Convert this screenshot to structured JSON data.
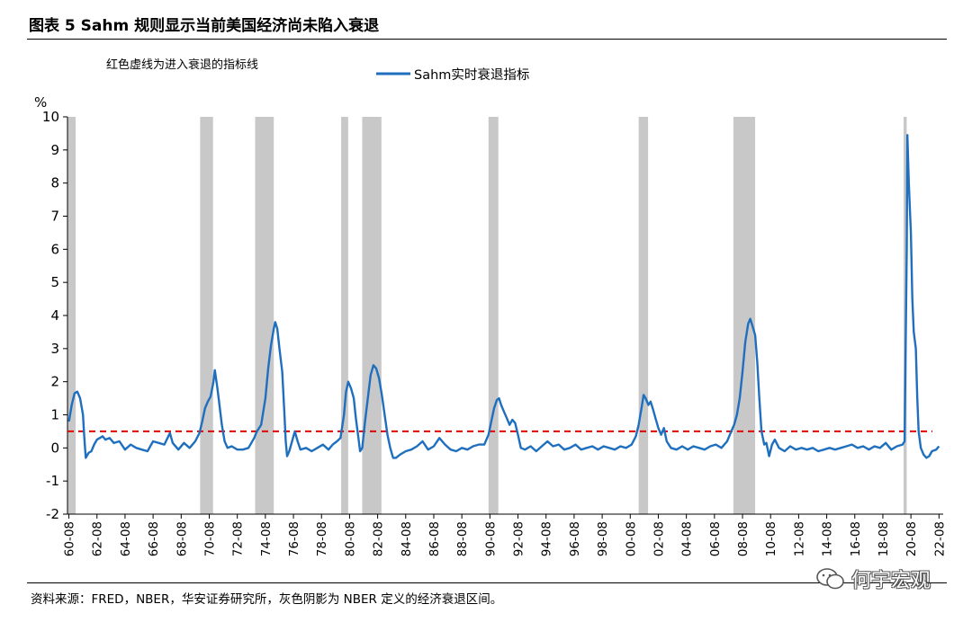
{
  "figure_title": "图表 5 Sahm 规则显示当前美国经济尚未陷入衰退",
  "source_note": "资料来源：FRED，NBER，华安证券研究所，灰色阴影为 NBER 定义的经济衰退区间。",
  "watermark": "何宇宏观",
  "chart_data": {
    "type": "line",
    "title": "",
    "ylabel": "%",
    "ylim": [
      -2,
      10
    ],
    "yticks": [
      -2,
      -1,
      0,
      1,
      2,
      3,
      4,
      5,
      6,
      7,
      8,
      9,
      10
    ],
    "xlim": [
      1960.5,
      2022.9
    ],
    "xtick_labels": [
      "60-08",
      "62-08",
      "64-08",
      "66-08",
      "68-08",
      "70-08",
      "72-08",
      "74-08",
      "76-08",
      "78-08",
      "80-08",
      "82-08",
      "84-08",
      "86-08",
      "88-08",
      "90-08",
      "92-08",
      "94-08",
      "96-08",
      "98-08",
      "00-08",
      "02-08",
      "04-08",
      "06-08",
      "08-08",
      "10-08",
      "12-08",
      "14-08",
      "16-08",
      "18-08",
      "20-08",
      "22-08"
    ],
    "annotation": "红色虚线为进入衰退的指标线",
    "threshold": {
      "value": 0.5,
      "color": "#e00000",
      "style": "dashed"
    },
    "recessions": [
      [
        1960.33,
        1961.08
      ],
      [
        1969.95,
        1970.87
      ],
      [
        1973.87,
        1975.2
      ],
      [
        1980.0,
        1980.5
      ],
      [
        1981.5,
        1982.87
      ],
      [
        1990.5,
        1991.2
      ],
      [
        2001.2,
        2001.87
      ],
      [
        2007.95,
        2009.5
      ],
      [
        2020.08,
        2020.3
      ]
    ],
    "recession_color": "#c8c8c8",
    "grid": false,
    "legend_position": "top-center",
    "series": [
      {
        "name": "Sahm实时衰退指标",
        "color": "#1f6fbf",
        "points": [
          [
            1960.6,
            0.8
          ],
          [
            1960.8,
            1.3
          ],
          [
            1961.0,
            1.65
          ],
          [
            1961.2,
            1.7
          ],
          [
            1961.4,
            1.5
          ],
          [
            1961.6,
            1.0
          ],
          [
            1961.7,
            0.3
          ],
          [
            1961.8,
            -0.3
          ],
          [
            1962.0,
            -0.15
          ],
          [
            1962.2,
            -0.1
          ],
          [
            1962.4,
            0.1
          ],
          [
            1962.6,
            0.25
          ],
          [
            1962.8,
            0.3
          ],
          [
            1963.0,
            0.35
          ],
          [
            1963.2,
            0.25
          ],
          [
            1963.5,
            0.3
          ],
          [
            1963.8,
            0.15
          ],
          [
            1964.2,
            0.2
          ],
          [
            1964.6,
            -0.05
          ],
          [
            1965.0,
            0.1
          ],
          [
            1965.4,
            0.0
          ],
          [
            1965.8,
            -0.05
          ],
          [
            1966.2,
            -0.1
          ],
          [
            1966.6,
            0.2
          ],
          [
            1967.0,
            0.15
          ],
          [
            1967.4,
            0.1
          ],
          [
            1967.8,
            0.45
          ],
          [
            1968.0,
            0.15
          ],
          [
            1968.4,
            -0.05
          ],
          [
            1968.8,
            0.15
          ],
          [
            1969.2,
            0.0
          ],
          [
            1969.6,
            0.2
          ],
          [
            1969.9,
            0.45
          ],
          [
            1970.1,
            0.8
          ],
          [
            1970.3,
            1.2
          ],
          [
            1970.5,
            1.4
          ],
          [
            1970.7,
            1.55
          ],
          [
            1970.9,
            2.0
          ],
          [
            1971.0,
            2.35
          ],
          [
            1971.15,
            1.9
          ],
          [
            1971.3,
            1.4
          ],
          [
            1971.5,
            0.7
          ],
          [
            1971.7,
            0.2
          ],
          [
            1971.9,
            0.0
          ],
          [
            1972.2,
            0.05
          ],
          [
            1972.6,
            -0.05
          ],
          [
            1973.0,
            -0.05
          ],
          [
            1973.4,
            0.0
          ],
          [
            1973.8,
            0.3
          ],
          [
            1974.0,
            0.5
          ],
          [
            1974.3,
            0.7
          ],
          [
            1974.6,
            1.5
          ],
          [
            1974.8,
            2.4
          ],
          [
            1975.0,
            3.1
          ],
          [
            1975.2,
            3.6
          ],
          [
            1975.3,
            3.8
          ],
          [
            1975.45,
            3.6
          ],
          [
            1975.6,
            3.0
          ],
          [
            1975.8,
            2.3
          ],
          [
            1975.95,
            1.1
          ],
          [
            1976.05,
            0.2
          ],
          [
            1976.15,
            -0.25
          ],
          [
            1976.3,
            -0.1
          ],
          [
            1976.5,
            0.2
          ],
          [
            1976.7,
            0.5
          ],
          [
            1976.9,
            0.2
          ],
          [
            1977.1,
            -0.05
          ],
          [
            1977.5,
            0.0
          ],
          [
            1977.9,
            -0.1
          ],
          [
            1978.3,
            0.0
          ],
          [
            1978.7,
            0.1
          ],
          [
            1979.1,
            -0.05
          ],
          [
            1979.4,
            0.1
          ],
          [
            1979.7,
            0.2
          ],
          [
            1979.95,
            0.3
          ],
          [
            1980.2,
            1.0
          ],
          [
            1980.35,
            1.7
          ],
          [
            1980.5,
            2.0
          ],
          [
            1980.7,
            1.8
          ],
          [
            1980.9,
            1.5
          ],
          [
            1981.05,
            0.9
          ],
          [
            1981.2,
            0.4
          ],
          [
            1981.35,
            -0.1
          ],
          [
            1981.5,
            0.0
          ],
          [
            1981.7,
            0.8
          ],
          [
            1981.9,
            1.5
          ],
          [
            1982.1,
            2.2
          ],
          [
            1982.3,
            2.5
          ],
          [
            1982.5,
            2.4
          ],
          [
            1982.7,
            2.1
          ],
          [
            1982.9,
            1.6
          ],
          [
            1983.1,
            1.0
          ],
          [
            1983.3,
            0.4
          ],
          [
            1983.5,
            0.0
          ],
          [
            1983.7,
            -0.3
          ],
          [
            1983.9,
            -0.3
          ],
          [
            1984.2,
            -0.2
          ],
          [
            1984.6,
            -0.1
          ],
          [
            1985.0,
            -0.05
          ],
          [
            1985.4,
            0.05
          ],
          [
            1985.8,
            0.2
          ],
          [
            1986.2,
            -0.05
          ],
          [
            1986.6,
            0.05
          ],
          [
            1987.0,
            0.3
          ],
          [
            1987.4,
            0.1
          ],
          [
            1987.8,
            -0.05
          ],
          [
            1988.2,
            -0.1
          ],
          [
            1988.6,
            0.0
          ],
          [
            1989.0,
            -0.05
          ],
          [
            1989.4,
            0.05
          ],
          [
            1989.8,
            0.1
          ],
          [
            1990.2,
            0.1
          ],
          [
            1990.5,
            0.4
          ],
          [
            1990.7,
            0.8
          ],
          [
            1990.9,
            1.2
          ],
          [
            1991.1,
            1.45
          ],
          [
            1991.25,
            1.5
          ],
          [
            1991.4,
            1.3
          ],
          [
            1991.6,
            1.1
          ],
          [
            1991.8,
            0.9
          ],
          [
            1992.0,
            0.7
          ],
          [
            1992.2,
            0.85
          ],
          [
            1992.4,
            0.75
          ],
          [
            1992.6,
            0.4
          ],
          [
            1992.8,
            0.0
          ],
          [
            1993.1,
            -0.05
          ],
          [
            1993.5,
            0.05
          ],
          [
            1993.9,
            -0.1
          ],
          [
            1994.3,
            0.05
          ],
          [
            1994.7,
            0.2
          ],
          [
            1995.1,
            0.05
          ],
          [
            1995.5,
            0.1
          ],
          [
            1995.9,
            -0.05
          ],
          [
            1996.3,
            0.0
          ],
          [
            1996.7,
            0.1
          ],
          [
            1997.1,
            -0.05
          ],
          [
            1997.5,
            0.0
          ],
          [
            1997.9,
            0.05
          ],
          [
            1998.3,
            -0.05
          ],
          [
            1998.7,
            0.05
          ],
          [
            1999.1,
            0.0
          ],
          [
            1999.5,
            -0.05
          ],
          [
            1999.9,
            0.05
          ],
          [
            2000.3,
            0.0
          ],
          [
            2000.7,
            0.1
          ],
          [
            2001.0,
            0.35
          ],
          [
            2001.2,
            0.7
          ],
          [
            2001.4,
            1.2
          ],
          [
            2001.55,
            1.6
          ],
          [
            2001.7,
            1.5
          ],
          [
            2001.9,
            1.3
          ],
          [
            2002.05,
            1.4
          ],
          [
            2002.2,
            1.2
          ],
          [
            2002.4,
            0.9
          ],
          [
            2002.6,
            0.6
          ],
          [
            2002.8,
            0.4
          ],
          [
            2003.0,
            0.6
          ],
          [
            2003.2,
            0.2
          ],
          [
            2003.5,
            0.0
          ],
          [
            2003.9,
            -0.05
          ],
          [
            2004.3,
            0.05
          ],
          [
            2004.7,
            -0.05
          ],
          [
            2005.1,
            0.05
          ],
          [
            2005.5,
            0.0
          ],
          [
            2005.9,
            -0.05
          ],
          [
            2006.3,
            0.05
          ],
          [
            2006.7,
            0.1
          ],
          [
            2007.1,
            0.0
          ],
          [
            2007.5,
            0.2
          ],
          [
            2007.8,
            0.5
          ],
          [
            2008.0,
            0.7
          ],
          [
            2008.2,
            1.0
          ],
          [
            2008.4,
            1.5
          ],
          [
            2008.6,
            2.3
          ],
          [
            2008.8,
            3.2
          ],
          [
            2009.0,
            3.75
          ],
          [
            2009.15,
            3.9
          ],
          [
            2009.3,
            3.7
          ],
          [
            2009.5,
            3.4
          ],
          [
            2009.65,
            2.6
          ],
          [
            2009.8,
            1.5
          ],
          [
            2009.95,
            0.5
          ],
          [
            2010.15,
            0.1
          ],
          [
            2010.3,
            0.15
          ],
          [
            2010.5,
            -0.25
          ],
          [
            2010.7,
            0.1
          ],
          [
            2010.9,
            0.25
          ],
          [
            2011.2,
            0.0
          ],
          [
            2011.6,
            -0.1
          ],
          [
            2012.0,
            0.05
          ],
          [
            2012.4,
            -0.05
          ],
          [
            2012.8,
            0.0
          ],
          [
            2013.2,
            -0.05
          ],
          [
            2013.6,
            0.0
          ],
          [
            2014.0,
            -0.1
          ],
          [
            2014.4,
            -0.05
          ],
          [
            2014.8,
            0.0
          ],
          [
            2015.2,
            -0.05
          ],
          [
            2015.6,
            0.0
          ],
          [
            2016.0,
            0.05
          ],
          [
            2016.4,
            0.1
          ],
          [
            2016.8,
            0.0
          ],
          [
            2017.2,
            0.05
          ],
          [
            2017.6,
            -0.05
          ],
          [
            2018.0,
            0.05
          ],
          [
            2018.4,
            0.0
          ],
          [
            2018.8,
            0.15
          ],
          [
            2019.2,
            -0.05
          ],
          [
            2019.6,
            0.05
          ],
          [
            2020.0,
            0.1
          ],
          [
            2020.15,
            0.2
          ],
          [
            2020.3,
            6.0
          ],
          [
            2020.35,
            9.45
          ],
          [
            2020.45,
            8.0
          ],
          [
            2020.6,
            6.5
          ],
          [
            2020.7,
            4.5
          ],
          [
            2020.8,
            3.5
          ],
          [
            2020.95,
            3.0
          ],
          [
            2021.05,
            1.5
          ],
          [
            2021.15,
            0.5
          ],
          [
            2021.3,
            0.0
          ],
          [
            2021.5,
            -0.2
          ],
          [
            2021.7,
            -0.3
          ],
          [
            2021.9,
            -0.25
          ],
          [
            2022.1,
            -0.1
          ],
          [
            2022.4,
            -0.05
          ],
          [
            2022.6,
            0.05
          ]
        ]
      }
    ]
  }
}
